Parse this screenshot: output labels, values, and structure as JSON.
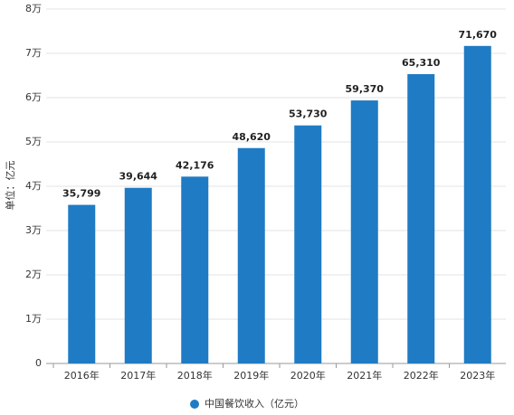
{
  "chart_data": {
    "type": "bar",
    "y_label": "单位：亿元",
    "categories": [
      "2016年",
      "2017年",
      "2018年",
      "2019年",
      "2020年",
      "2021年",
      "2022年",
      "2023年"
    ],
    "series": [
      {
        "name": "中国餐饮收入（亿元）",
        "color": "#1f7bc4",
        "values": [
          35799,
          39644,
          42176,
          48620,
          53730,
          59370,
          65310,
          71670
        ],
        "value_labels": [
          "35,799",
          "39,644",
          "42,176",
          "48,620",
          "53,730",
          "59,370",
          "65,310",
          "71,670"
        ]
      }
    ],
    "ylim": [
      0,
      80000
    ],
    "yticks": [
      0,
      {
        "value": 10000,
        "label": "1万"
      },
      {
        "value": 20000,
        "label": "2万"
      },
      {
        "value": 30000,
        "label": "3万"
      },
      {
        "value": 40000,
        "label": "4万"
      },
      {
        "value": 50000,
        "label": "5万"
      },
      {
        "value": 60000,
        "label": "6万"
      },
      {
        "value": 70000,
        "label": "7万"
      },
      {
        "value": 80000,
        "label": "8万"
      }
    ],
    "grid": true,
    "legend": "bottom"
  }
}
